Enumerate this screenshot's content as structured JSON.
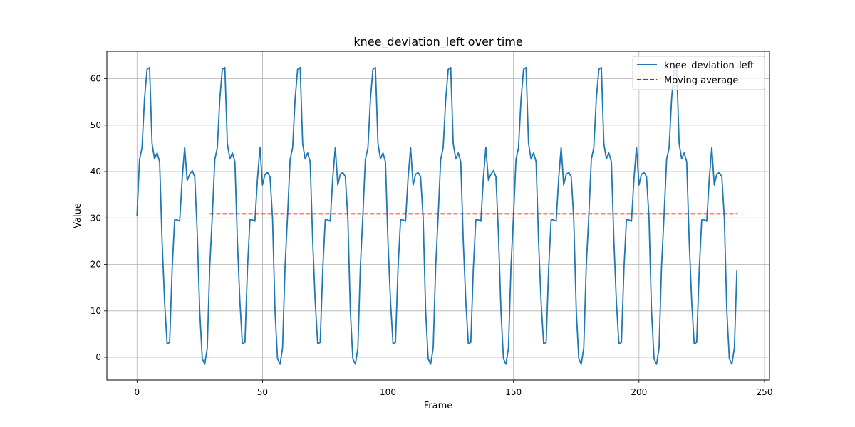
{
  "chart_data": {
    "type": "line",
    "title": "knee_deviation_left over time",
    "xlabel": "Frame",
    "ylabel": "Value",
    "xlim": [
      -12,
      252
    ],
    "ylim": [
      -4.9,
      65.9
    ],
    "xticks": [
      0,
      50,
      100,
      150,
      200,
      250
    ],
    "yticks": [
      0,
      10,
      20,
      30,
      40,
      50,
      60
    ],
    "grid": true,
    "legend_position": "top-right",
    "series": [
      {
        "name": "knee_deviation_left",
        "color": "#1f77b4",
        "style": "solid",
        "x_start": 0,
        "x_step": 1,
        "values": [
          30.5,
          42.6,
          45.1,
          55.6,
          62.0,
          62.4,
          46.0,
          42.7,
          44.0,
          42.1,
          25.0,
          12.0,
          2.9,
          3.2,
          19.0,
          29.6,
          29.6,
          29.3,
          38.5,
          45.2,
          38.1,
          39.4,
          40.2,
          38.9,
          26.9,
          10.0,
          -0.3,
          -1.5,
          2.0,
          19.6,
          30.5,
          42.6,
          45.1,
          55.6,
          62.0,
          62.4,
          46.0,
          42.7,
          44.0,
          42.1,
          25.0,
          12.0,
          2.9,
          3.2,
          19.0,
          29.6,
          29.6,
          29.3,
          38.5,
          45.2,
          37.1,
          39.4,
          39.8,
          38.9,
          30.0,
          10.0,
          -0.3,
          -1.5,
          2.0,
          19.6,
          30.5,
          42.6,
          45.1,
          55.6,
          62.0,
          62.4,
          46.0,
          42.7,
          44.0,
          42.1,
          25.0,
          12.0,
          2.9,
          3.2,
          19.0,
          29.6,
          29.6,
          29.3,
          38.5,
          45.2,
          37.1,
          39.4,
          39.8,
          38.9,
          30.0,
          10.0,
          -0.3,
          -1.5,
          2.0,
          19.6,
          30.5,
          42.6,
          45.1,
          55.6,
          62.0,
          62.4,
          46.0,
          42.7,
          44.0,
          42.1,
          25.0,
          12.0,
          2.9,
          3.2,
          19.0,
          29.6,
          29.6,
          29.3,
          38.5,
          45.2,
          37.1,
          39.4,
          39.8,
          38.9,
          30.0,
          10.0,
          -0.3,
          -1.5,
          2.0,
          19.6,
          30.5,
          42.6,
          45.1,
          55.6,
          62.0,
          62.4,
          46.0,
          42.7,
          44.0,
          42.1,
          25.0,
          12.0,
          2.9,
          3.2,
          19.0,
          29.6,
          29.6,
          29.3,
          38.5,
          45.2,
          38.1,
          39.4,
          40.2,
          38.9,
          26.9,
          10.0,
          -0.3,
          -1.5,
          2.0,
          19.6,
          30.5,
          42.6,
          45.1,
          55.6,
          62.0,
          62.4,
          46.0,
          42.7,
          44.0,
          42.1,
          25.0,
          12.0,
          2.9,
          3.2,
          19.0,
          29.6,
          29.6,
          29.3,
          38.5,
          45.2,
          37.1,
          39.4,
          39.8,
          38.9,
          30.0,
          10.0,
          -0.3,
          -1.5,
          2.0,
          19.6,
          30.5,
          42.6,
          45.1,
          55.6,
          62.0,
          62.4,
          46.0,
          42.7,
          44.0,
          42.1,
          25.0,
          12.0,
          2.9,
          3.2,
          19.0,
          29.6,
          29.6,
          29.3,
          38.5,
          45.2,
          37.1,
          39.4,
          39.8,
          38.9,
          30.0,
          10.0,
          -0.3,
          -1.5,
          2.0,
          19.6,
          30.5,
          42.6,
          45.1,
          55.6,
          62.0,
          62.4,
          46.0,
          42.7,
          44.0,
          42.1,
          25.0,
          12.0,
          2.9,
          3.2,
          19.0,
          29.6,
          29.6,
          29.3,
          38.5,
          45.2,
          37.1,
          39.4,
          39.8,
          38.9,
          30.0,
          10.0,
          -0.3,
          -1.5,
          2.0,
          18.7
        ]
      },
      {
        "name": "Moving average",
        "color": "#ff0000",
        "style": "dashed",
        "x": [
          29,
          239
        ],
        "values": [
          30.9,
          30.9
        ]
      }
    ]
  }
}
